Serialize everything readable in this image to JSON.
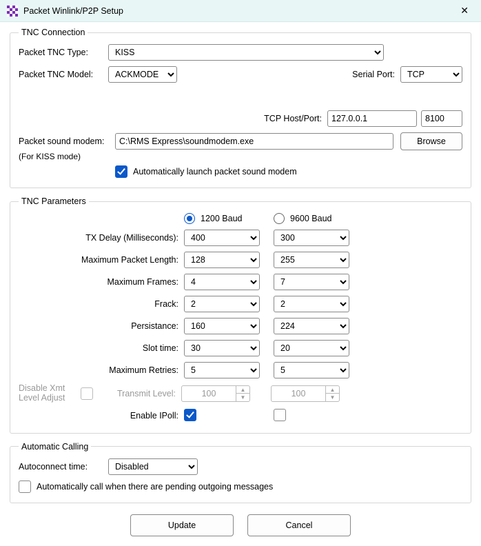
{
  "titlebar": {
    "title": "Packet Winlink/P2P Setup",
    "icon_colors": [
      "#7b2fb5",
      "#ffffff",
      "#7b2fb5",
      "#ffffff",
      "#ffffff",
      "#7b2fb5",
      "#ffffff",
      "#7b2fb5",
      "#7b2fb5",
      "#ffffff",
      "#7b2fb5",
      "#ffffff",
      "#ffffff",
      "#7b2fb5",
      "#ffffff",
      "#7b2fb5"
    ]
  },
  "tnc_conn": {
    "legend": "TNC Connection",
    "type_label": "Packet TNC Type:",
    "type_value": "KISS",
    "model_label": "Packet TNC Model:",
    "model_value": "ACKMODE",
    "serial_port_label": "Serial Port:",
    "serial_port_value": "TCP",
    "tcp_label": "TCP Host/Port:",
    "tcp_host": "127.0.0.1",
    "tcp_port": "8100",
    "sound_modem_label": "Packet sound modem:",
    "sound_modem_note": "(For KISS mode)",
    "sound_modem_path": "C:\\RMS Express\\soundmodem.exe",
    "browse_label": "Browse",
    "auto_launch_label": "Automatically launch packet sound modem",
    "auto_launch_checked": true
  },
  "tnc_params": {
    "legend": "TNC Parameters",
    "baud_1200_label": "1200 Baud",
    "baud_9600_label": "9600 Baud",
    "baud_selected": "1200",
    "rows": {
      "tx_delay": {
        "label": "TX Delay (Milliseconds):",
        "v1": "400",
        "v2": "300"
      },
      "max_packet": {
        "label": "Maximum Packet Length:",
        "v1": "128",
        "v2": "255"
      },
      "max_frames": {
        "label": "Maximum Frames:",
        "v1": "4",
        "v2": "7"
      },
      "frack": {
        "label": "Frack:",
        "v1": "2",
        "v2": "2"
      },
      "persist": {
        "label": "Persistance:",
        "v1": "160",
        "v2": "224"
      },
      "slot": {
        "label": "Slot time:",
        "v1": "30",
        "v2": "20"
      },
      "retries": {
        "label": "Maximum Retries:",
        "v1": "5",
        "v2": "5"
      }
    },
    "disable_xmt_label_line1": "Disable Xmt",
    "disable_xmt_label_line2": "Level Adjust",
    "disable_xmt_checked": false,
    "transmit_level_label": "Transmit Level:",
    "transmit_level_v1": "100",
    "transmit_level_v2": "100",
    "enable_ipoll_label": "Enable IPoll:",
    "enable_ipoll_v1": true,
    "enable_ipoll_v2": false
  },
  "auto_calling": {
    "legend": "Automatic Calling",
    "time_label": "Autoconnect time:",
    "time_value": "Disabled",
    "pending_label": "Automatically call when there are pending outgoing messages",
    "pending_checked": false
  },
  "buttons": {
    "update": "Update",
    "cancel": "Cancel"
  }
}
